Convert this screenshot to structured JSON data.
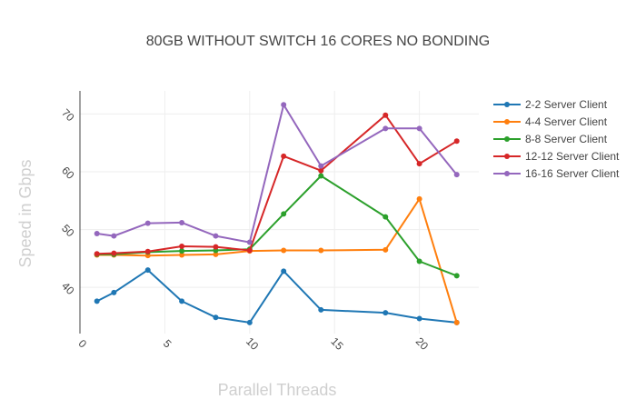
{
  "chart_data": {
    "type": "line",
    "title": "80GB WITHOUT SWITCH 16 CORES NO BONDING",
    "xlabel": "Parallel Threads",
    "ylabel": "Speed in Gbps",
    "xlim": [
      0,
      23.5
    ],
    "ylim": [
      32,
      74
    ],
    "xticks": [
      0,
      5,
      10,
      15,
      20
    ],
    "yticks": [
      40,
      50,
      60,
      70
    ],
    "tick_rotation_deg": 45,
    "grid": true,
    "legend_position": "right",
    "series": [
      {
        "name": "2-2 Server Client",
        "color": "#1f77b4",
        "x": [
          1,
          2,
          4,
          6,
          8,
          10,
          12,
          14.2,
          18,
          20,
          22.2
        ],
        "y": [
          37.6,
          39.1,
          43,
          37.6,
          34.8,
          33.9,
          42.8,
          36.1,
          35.6,
          34.6,
          33.9
        ]
      },
      {
        "name": "4-4 Server Client",
        "color": "#ff7f0e",
        "x": [
          1,
          2,
          4,
          6,
          8,
          10,
          12,
          14.2,
          18,
          20,
          22.2
        ],
        "y": [
          45.6,
          45.6,
          45.5,
          45.6,
          45.7,
          46.3,
          46.4,
          46.4,
          46.5,
          55.3,
          33.9
        ]
      },
      {
        "name": "8-8 Server Client",
        "color": "#2ca02c",
        "x": [
          1,
          2,
          4,
          6,
          8,
          10,
          12,
          14.2,
          18,
          20,
          22.2
        ],
        "y": [
          45.7,
          45.7,
          46.1,
          46.3,
          46.4,
          46.6,
          52.7,
          59.3,
          52.2,
          44.5,
          42
        ]
      },
      {
        "name": "12-12 Server Client",
        "color": "#d62728",
        "x": [
          1,
          2,
          4,
          6,
          8,
          10,
          12,
          14.2,
          18,
          20,
          22.2
        ],
        "y": [
          45.8,
          45.9,
          46.2,
          47.1,
          47,
          46.4,
          62.7,
          60.2,
          69.8,
          61.4,
          65.3
        ]
      },
      {
        "name": "16-16 Server Client",
        "color": "#9467bd",
        "x": [
          1,
          2,
          4,
          6,
          8,
          10,
          12,
          14.2,
          18,
          20,
          22.2
        ],
        "y": [
          49.3,
          48.9,
          51.1,
          51.2,
          48.9,
          47.8,
          71.6,
          61,
          67.5,
          67.5,
          59.5
        ]
      }
    ]
  }
}
